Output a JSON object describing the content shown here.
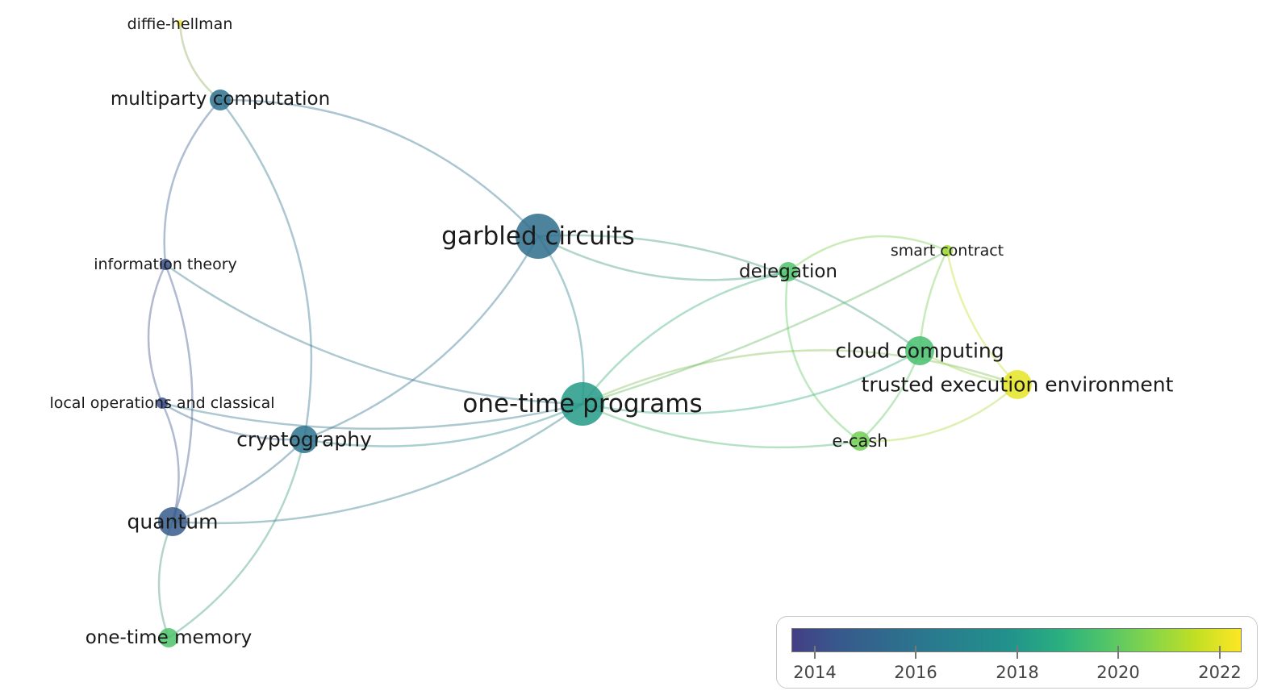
{
  "nodes": [
    {
      "id": "diffie-hellman",
      "label": "diffie-hellman",
      "year": 2022.2
    },
    {
      "id": "multiparty-computation",
      "label": "multiparty computation",
      "year": 2015.5
    },
    {
      "id": "information-theory",
      "label": "information theory",
      "year": 2014.3
    },
    {
      "id": "local-operations",
      "label": "local operations and classical",
      "year": 2014.3
    },
    {
      "id": "cryptography",
      "label": "cryptography",
      "year": 2015.6
    },
    {
      "id": "quantum",
      "label": "quantum",
      "year": 2014.8
    },
    {
      "id": "one-time-memory",
      "label": "one-time memory",
      "year": 2019.0
    },
    {
      "id": "garbled-circuits",
      "label": "garbled circuits",
      "year": 2015.4
    },
    {
      "id": "one-time-programs",
      "label": "one-time programs",
      "year": 2017.2
    },
    {
      "id": "delegation",
      "label": "delegation",
      "year": 2019.0
    },
    {
      "id": "smart-contract",
      "label": "smart contract",
      "year": 2020.8
    },
    {
      "id": "cloud-computing",
      "label": "cloud computing",
      "year": 2018.8
    },
    {
      "id": "trusted-execution-environment",
      "label": "trusted execution environment",
      "year": 2022.0
    },
    {
      "id": "e-cash",
      "label": "e-cash",
      "year": 2019.8
    }
  ],
  "edges": [
    [
      "diffie-hellman",
      "multiparty-computation"
    ],
    [
      "multiparty-computation",
      "garbled-circuits"
    ],
    [
      "multiparty-computation",
      "information-theory"
    ],
    [
      "multiparty-computation",
      "cryptography"
    ],
    [
      "information-theory",
      "local-operations"
    ],
    [
      "information-theory",
      "quantum"
    ],
    [
      "information-theory",
      "one-time-programs"
    ],
    [
      "local-operations",
      "quantum"
    ],
    [
      "local-operations",
      "cryptography"
    ],
    [
      "local-operations",
      "one-time-programs"
    ],
    [
      "cryptography",
      "garbled-circuits"
    ],
    [
      "cryptography",
      "one-time-programs"
    ],
    [
      "cryptography",
      "quantum"
    ],
    [
      "cryptography",
      "one-time-memory"
    ],
    [
      "quantum",
      "one-time-programs"
    ],
    [
      "quantum",
      "one-time-memory"
    ],
    [
      "garbled-circuits",
      "one-time-programs"
    ],
    [
      "garbled-circuits",
      "delegation"
    ],
    [
      "garbled-circuits",
      "cloud-computing"
    ],
    [
      "one-time-programs",
      "delegation"
    ],
    [
      "one-time-programs",
      "cloud-computing"
    ],
    [
      "one-time-programs",
      "e-cash"
    ],
    [
      "one-time-programs",
      "trusted-execution-environment"
    ],
    [
      "one-time-programs",
      "smart-contract"
    ],
    [
      "delegation",
      "e-cash"
    ],
    [
      "delegation",
      "smart-contract"
    ],
    [
      "smart-contract",
      "cloud-computing"
    ],
    [
      "smart-contract",
      "trusted-execution-environment"
    ],
    [
      "cloud-computing",
      "trusted-execution-environment"
    ],
    [
      "cloud-computing",
      "e-cash"
    ],
    [
      "e-cash",
      "trusted-execution-environment"
    ]
  ],
  "legend": {
    "ticks": [
      "2014",
      "2016",
      "2018",
      "2020",
      "2022"
    ],
    "min_year": 2013.55,
    "max_year": 2022.45
  },
  "colors": {
    "scale": [
      "#433e85",
      "#38588c",
      "#2a788e",
      "#21918c",
      "#2ab07f",
      "#52c569",
      "#86d549",
      "#c2df23",
      "#fde725"
    ]
  }
}
